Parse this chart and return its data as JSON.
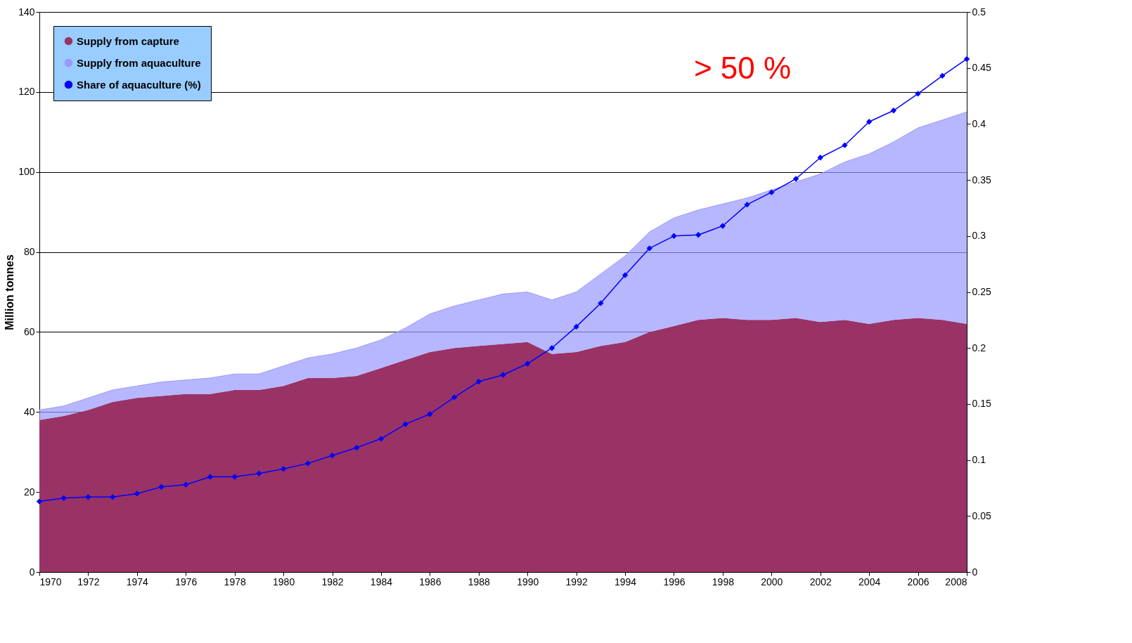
{
  "chart_data": {
    "type": "area",
    "stacked": true,
    "ylabel": "Million tonnes",
    "x": [
      1970,
      1971,
      1972,
      1973,
      1974,
      1975,
      1976,
      1977,
      1978,
      1979,
      1980,
      1981,
      1982,
      1983,
      1984,
      1985,
      1986,
      1987,
      1988,
      1989,
      1990,
      1991,
      1992,
      1993,
      1994,
      1995,
      1996,
      1997,
      1998,
      1999,
      2000,
      2001,
      2002,
      2003,
      2004,
      2005,
      2006,
      2007,
      2008
    ],
    "series": [
      {
        "name": "Supply from capture",
        "color": "#993366",
        "values": [
          38,
          39,
          40.5,
          42.5,
          43.5,
          44,
          44.5,
          44.5,
          45.5,
          45.5,
          46.5,
          48.5,
          48.5,
          49,
          51,
          53,
          55,
          56,
          56.5,
          57,
          57.5,
          54.5,
          55,
          56.5,
          57.5,
          60,
          61.5,
          63,
          63.5,
          63,
          63,
          63.5,
          62.5,
          63,
          62,
          63,
          63.5,
          63,
          62
        ]
      },
      {
        "name": "Supply from aquaculture",
        "color": "#9999ff",
        "values": [
          2.5,
          2.5,
          3,
          3,
          3,
          3.5,
          3.5,
          4,
          4,
          4,
          5,
          5,
          6,
          7,
          7,
          8,
          9.5,
          10.5,
          11.5,
          12.5,
          12.5,
          13.5,
          15,
          18,
          21.5,
          25,
          27,
          27.5,
          28.5,
          30.5,
          32.5,
          34,
          37,
          39.5,
          42.5,
          44.5,
          47.5,
          50,
          53
        ]
      },
      {
        "name": "Share of aquaculture (%)",
        "type": "line",
        "axis": "y2",
        "color": "#0000ff",
        "marker": "diamond",
        "line_style": "solid",
        "values": [
          0.063,
          0.066,
          0.067,
          0.067,
          0.07,
          0.076,
          0.078,
          0.085,
          0.085,
          0.088,
          0.092,
          0.097,
          0.104,
          0.111,
          0.119,
          0.132,
          0.141,
          0.156,
          0.17,
          0.176,
          0.186,
          0.2,
          0.219,
          0.24,
          0.265,
          0.289,
          0.3,
          0.301,
          0.309,
          0.328,
          0.339,
          0.351,
          0.37,
          0.381,
          0.402,
          0.412,
          0.427,
          0.443,
          0.458
        ]
      }
    ],
    "xlim": [
      1970,
      2008
    ],
    "xticks": [
      1970,
      1972,
      1974,
      1976,
      1978,
      1980,
      1982,
      1984,
      1986,
      1988,
      1990,
      1992,
      1994,
      1996,
      1998,
      2000,
      2002,
      2004,
      2006,
      2008
    ],
    "ylim": [
      0,
      140
    ],
    "yticks": [
      0,
      20,
      40,
      60,
      80,
      100,
      120,
      140
    ],
    "y2lim": [
      0,
      0.5
    ],
    "y2ticks": [
      0,
      0.05,
      0.1,
      0.15,
      0.2,
      0.25,
      0.3,
      0.35,
      0.4,
      0.45,
      0.5
    ],
    "annotations": [
      "> 50 %"
    ],
    "grid": "y",
    "legend": "top left"
  }
}
